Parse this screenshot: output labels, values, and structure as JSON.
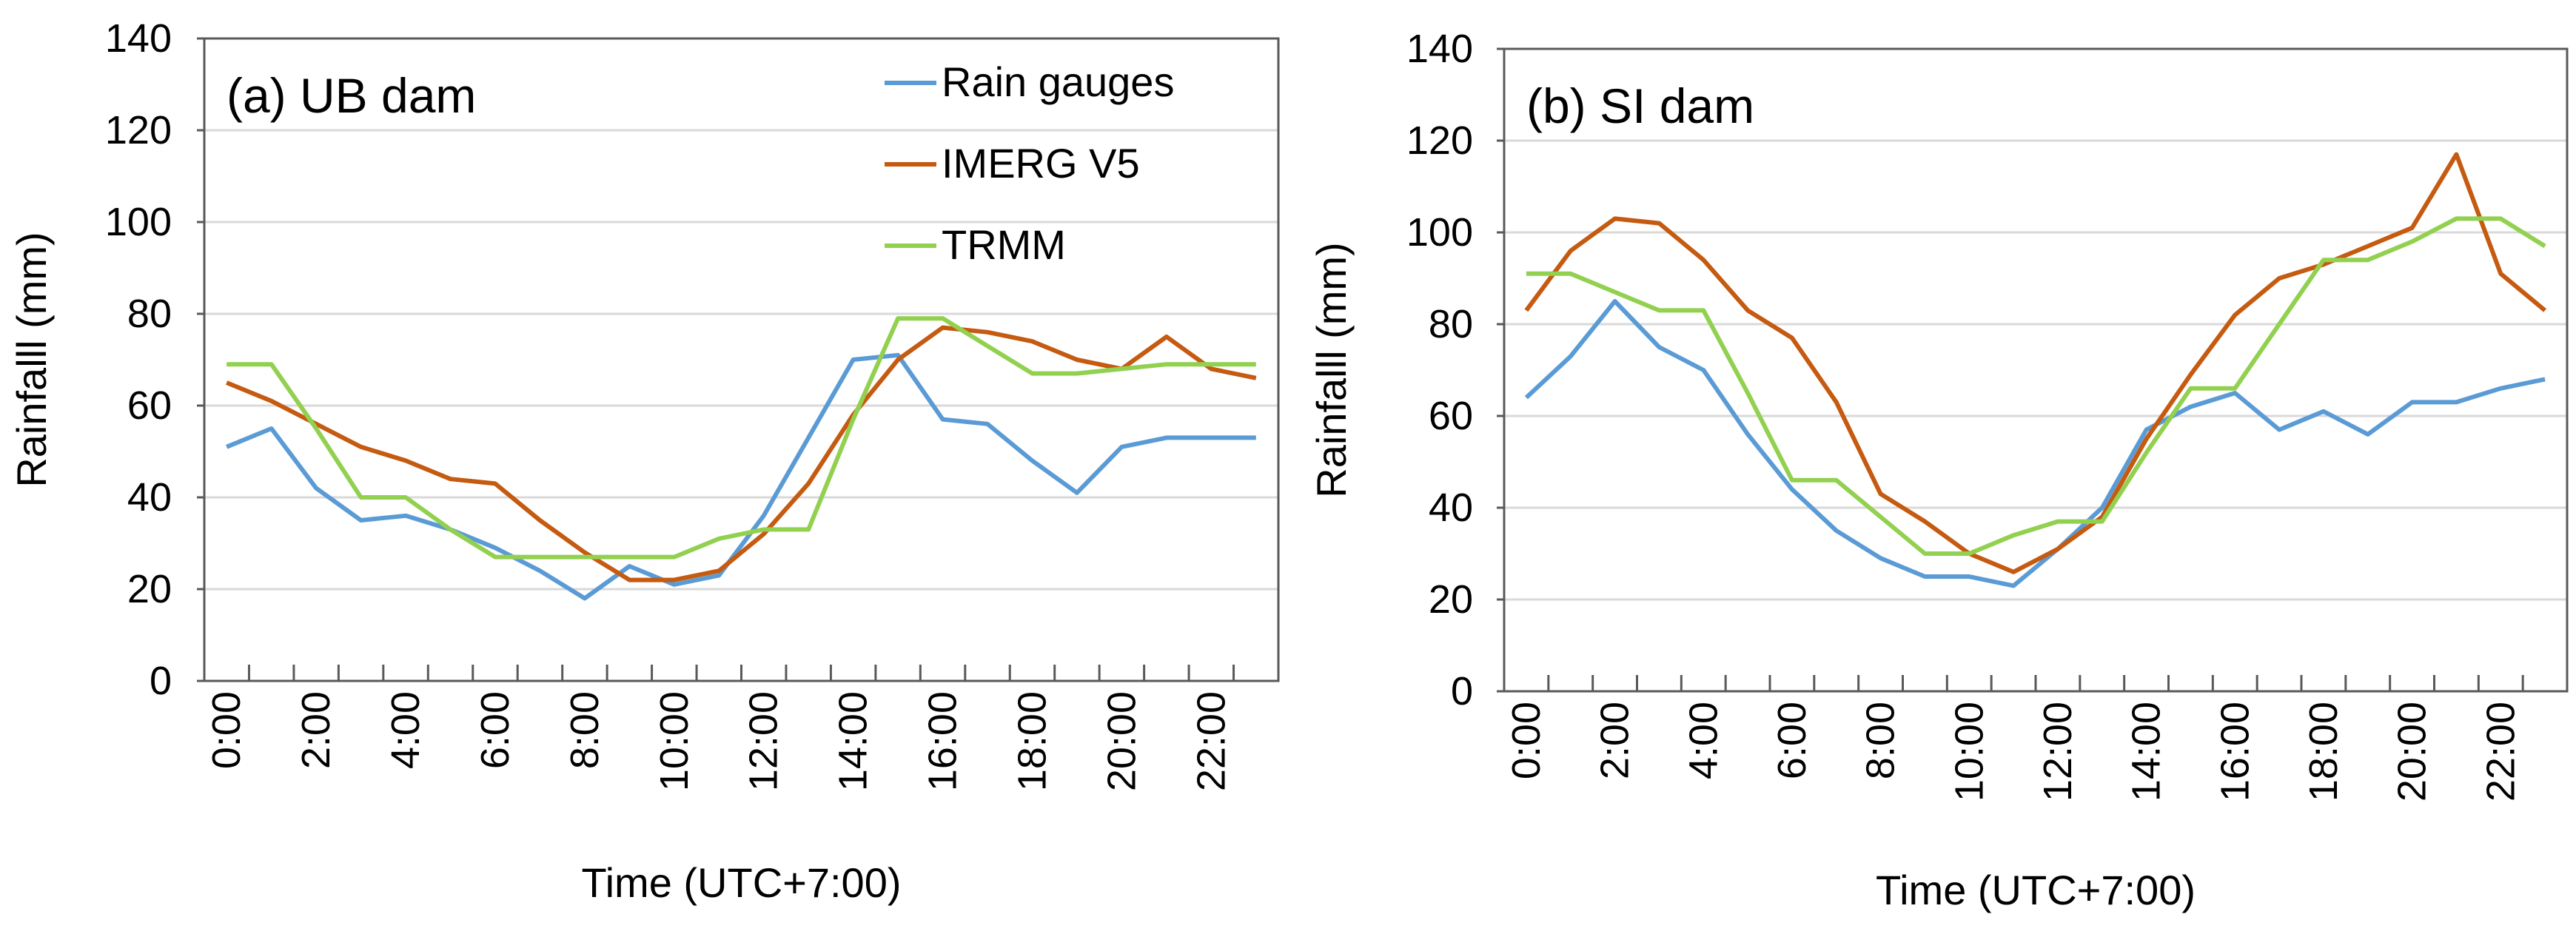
{
  "colors": {
    "rain_gauges": "#5B9BD5",
    "imerg": "#C55A11",
    "trmm": "#92D050",
    "grid": "#D9D9D9",
    "axis": "#595959"
  },
  "chart_data": [
    {
      "type": "line",
      "title": "(a) UB dam",
      "xlabel": "Time (UTC+7:00)",
      "ylabel": "Rainfalll (mm)",
      "ylim": [
        0,
        140
      ],
      "yticks": [
        "0",
        "20",
        "40",
        "60",
        "80",
        "100",
        "120",
        "140"
      ],
      "categories": [
        "0:00",
        "1:00",
        "2:00",
        "3:00",
        "4:00",
        "5:00",
        "6:00",
        "7:00",
        "8:00",
        "9:00",
        "10:00",
        "11:00",
        "12:00",
        "13:00",
        "14:00",
        "15:00",
        "16:00",
        "17:00",
        "18:00",
        "19:00",
        "20:00",
        "21:00",
        "22:00",
        "23:00"
      ],
      "xtick_labels": [
        "0:00",
        "2:00",
        "4:00",
        "6:00",
        "8:00",
        "10:00",
        "12:00",
        "14:00",
        "16:00",
        "18:00",
        "20:00",
        "22:00"
      ],
      "grid": true,
      "legend": {
        "placement": "top-right",
        "entries": [
          "Rain gauges",
          "IMERG V5",
          "TRMM"
        ]
      },
      "series": [
        {
          "name": "Rain gauges",
          "values": [
            51,
            55,
            42,
            35,
            36,
            33,
            29,
            24,
            18,
            25,
            21,
            23,
            36,
            53,
            70,
            71,
            57,
            56,
            48,
            41,
            51,
            53,
            53,
            53
          ]
        },
        {
          "name": "IMERG V5",
          "values": [
            65,
            61,
            56,
            51,
            48,
            44,
            43,
            35,
            28,
            22,
            22,
            24,
            32,
            43,
            58,
            70,
            77,
            76,
            74,
            70,
            68,
            75,
            68,
            66
          ]
        },
        {
          "name": "TRMM",
          "values": [
            69,
            69,
            55,
            40,
            40,
            33,
            27,
            27,
            27,
            27,
            27,
            31,
            33,
            33,
            57,
            79,
            79,
            73,
            67,
            67,
            68,
            69,
            69,
            69
          ]
        }
      ]
    },
    {
      "type": "line",
      "title": "(b) SI dam",
      "xlabel": "Time (UTC+7:00)",
      "ylabel": "Rainfalll (mm)",
      "ylim": [
        0,
        140
      ],
      "yticks": [
        "0",
        "20",
        "40",
        "60",
        "80",
        "100",
        "120",
        "140"
      ],
      "categories": [
        "0:00",
        "1:00",
        "2:00",
        "3:00",
        "4:00",
        "5:00",
        "6:00",
        "7:00",
        "8:00",
        "9:00",
        "10:00",
        "11:00",
        "12:00",
        "13:00",
        "14:00",
        "15:00",
        "16:00",
        "17:00",
        "18:00",
        "19:00",
        "20:00",
        "21:00",
        "22:00",
        "23:00"
      ],
      "xtick_labels": [
        "0:00",
        "2:00",
        "4:00",
        "6:00",
        "8:00",
        "10:00",
        "12:00",
        "14:00",
        "16:00",
        "18:00",
        "20:00",
        "22:00"
      ],
      "grid": true,
      "legend": null,
      "series": [
        {
          "name": "Rain gauges",
          "values": [
            64,
            73,
            85,
            75,
            70,
            56,
            44,
            35,
            29,
            25,
            25,
            23,
            31,
            40,
            57,
            62,
            65,
            57,
            61,
            56,
            63,
            63,
            66,
            68
          ]
        },
        {
          "name": "IMERG V5",
          "values": [
            83,
            96,
            103,
            102,
            94,
            83,
            77,
            63,
            43,
            37,
            30,
            26,
            31,
            38,
            55,
            69,
            82,
            90,
            93,
            97,
            101,
            117,
            91,
            83
          ]
        },
        {
          "name": "TRMM",
          "values": [
            91,
            91,
            87,
            83,
            83,
            65,
            46,
            46,
            38,
            30,
            30,
            34,
            37,
            37,
            52,
            66,
            66,
            80,
            94,
            94,
            98,
            103,
            103,
            97
          ]
        }
      ]
    }
  ]
}
